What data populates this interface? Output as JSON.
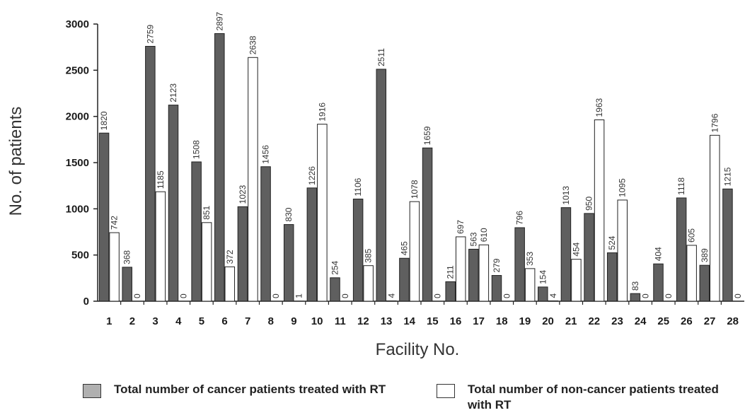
{
  "chart_data": {
    "type": "bar",
    "xlabel": "Facility No.",
    "ylabel": "No. of patients",
    "ylim": [
      0,
      3000
    ],
    "yticks": [
      0,
      500,
      1000,
      1500,
      2000,
      2500,
      3000
    ],
    "categories": [
      "1",
      "2",
      "3",
      "4",
      "5",
      "6",
      "7",
      "8",
      "9",
      "10",
      "11",
      "12",
      "13",
      "14",
      "15",
      "16",
      "17",
      "18",
      "19",
      "20",
      "21",
      "22",
      "23",
      "24",
      "25",
      "26",
      "27",
      "28"
    ],
    "series": [
      {
        "name": "Total number of cancer patients treated with RT",
        "color": "#5f5f5f",
        "values": [
          1820,
          368,
          2759,
          2123,
          1508,
          2897,
          1023,
          1456,
          830,
          1226,
          254,
          1106,
          2511,
          465,
          1659,
          211,
          563,
          279,
          796,
          154,
          1013,
          950,
          524,
          83,
          404,
          1118,
          389,
          1215
        ]
      },
      {
        "name": "Total number of non-cancer patients treated with RT",
        "color": "#ffffff",
        "values": [
          742,
          0,
          1185,
          0,
          851,
          372,
          2638,
          0,
          1,
          1916,
          0,
          385,
          4,
          1078,
          0,
          697,
          610,
          0,
          353,
          4,
          454,
          1963,
          1095,
          0,
          0,
          605,
          1796,
          0
        ]
      }
    ],
    "legend_position": "bottom",
    "grid": false
  }
}
